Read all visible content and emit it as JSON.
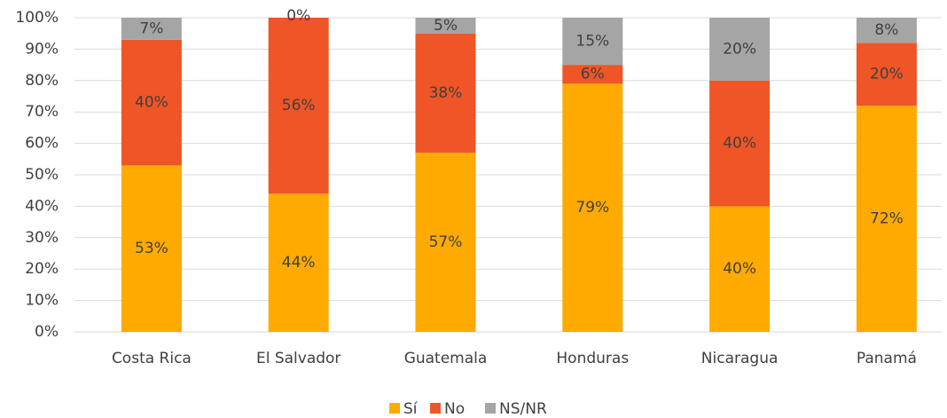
{
  "chart_data": {
    "type": "stacked_bar",
    "categories": [
      "Costa Rica",
      "El Salvador",
      "Guatemala",
      "Honduras",
      "Nicaragua",
      "Panamá"
    ],
    "series": [
      {
        "name": "Sí",
        "color": "#FFAA00",
        "values": [
          53,
          44,
          57,
          79,
          40,
          72
        ],
        "value_labels": [
          "53%",
          "44%",
          "57%",
          "79%",
          "40%",
          "72%"
        ]
      },
      {
        "name": "No",
        "color": "#EF5526",
        "values": [
          40,
          56,
          38,
          6,
          40,
          20
        ],
        "value_labels": [
          "40%",
          "56%",
          "38%",
          "6%",
          "40%",
          "20%"
        ]
      },
      {
        "name": "NS/NR",
        "color": "#A5A5A5",
        "values": [
          7,
          0,
          5,
          15,
          20,
          8
        ],
        "value_labels": [
          "7%",
          "0%",
          "5%",
          "15%",
          "20%",
          "8%"
        ]
      }
    ],
    "ylim": [
      0,
      100
    ],
    "yticks": [
      {
        "value": 0,
        "label": "0%"
      },
      {
        "value": 10,
        "label": "10%"
      },
      {
        "value": 20,
        "label": "20%"
      },
      {
        "value": 30,
        "label": "30%"
      },
      {
        "value": 40,
        "label": "40%"
      },
      {
        "value": 50,
        "label": "50%"
      },
      {
        "value": 60,
        "label": "60%"
      },
      {
        "value": 70,
        "label": "70%"
      },
      {
        "value": 80,
        "label": "80%"
      },
      {
        "value": 90,
        "label": "90%"
      },
      {
        "value": 100,
        "label": "100%"
      }
    ],
    "grid": true,
    "legend": "bottom"
  }
}
